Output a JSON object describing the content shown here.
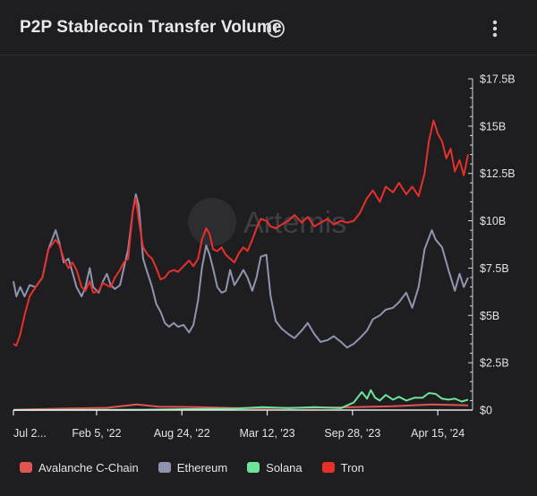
{
  "header": {
    "title": "P2P Stablecoin Transfer Volume",
    "info_icon": "info-icon",
    "menu_icon": "vertical-ellipsis-icon"
  },
  "watermark": "Artemis",
  "chart_data": {
    "type": "line",
    "title": "P2P Stablecoin Transfer Volume",
    "xlabel": "",
    "ylabel": "",
    "ylim": [
      0,
      17.5
    ],
    "y_unit": "B USD",
    "y_ticks": [
      "$0",
      "$2.5B",
      "$5B",
      "$7.5B",
      "$10B",
      "$12.5B",
      "$15B",
      "$17.5B"
    ],
    "y_tick_values": [
      0,
      2.5,
      5,
      7.5,
      10,
      12.5,
      15,
      17.5
    ],
    "x_tick_labels": [
      "Jul 2...",
      "Feb 5, '22",
      "Aug 24, '22",
      "Mar 12, '23",
      "Sep 28, '23",
      "Apr 15, '24"
    ],
    "x_tick_dates": [
      "2021-07-25",
      "2022-02-05",
      "2022-08-24",
      "2023-03-12",
      "2023-09-28",
      "2024-04-15"
    ],
    "x_range": [
      "2021-07-25",
      "2024-06-25"
    ],
    "grid": false,
    "legend_position": "bottom",
    "series": [
      {
        "name": "Avalanche C-Chain",
        "color": "#e0554f",
        "points": [
          [
            "2021-07-25",
            0.02
          ],
          [
            "2021-12-01",
            0.08
          ],
          [
            "2022-03-01",
            0.12
          ],
          [
            "2022-05-10",
            0.3
          ],
          [
            "2022-07-01",
            0.18
          ],
          [
            "2022-10-01",
            0.15
          ],
          [
            "2023-01-01",
            0.1
          ],
          [
            "2023-06-01",
            0.12
          ],
          [
            "2023-10-01",
            0.15
          ],
          [
            "2024-01-01",
            0.2
          ],
          [
            "2024-04-01",
            0.3
          ],
          [
            "2024-06-25",
            0.25
          ]
        ]
      },
      {
        "name": "Ethereum",
        "color": "#8f94b0",
        "points": [
          [
            "2021-07-25",
            6.8
          ],
          [
            "2021-08-01",
            6.0
          ],
          [
            "2021-08-10",
            6.5
          ],
          [
            "2021-08-20",
            6.0
          ],
          [
            "2021-09-01",
            6.6
          ],
          [
            "2021-09-15",
            6.5
          ],
          [
            "2021-10-01",
            7.0
          ],
          [
            "2021-10-15",
            8.5
          ],
          [
            "2021-11-01",
            9.5
          ],
          [
            "2021-11-10",
            8.8
          ],
          [
            "2021-11-20",
            7.8
          ],
          [
            "2021-12-01",
            8.0
          ],
          [
            "2021-12-10",
            7.3
          ],
          [
            "2021-12-20",
            6.5
          ],
          [
            "2022-01-01",
            6.0
          ],
          [
            "2022-01-10",
            6.5
          ],
          [
            "2022-01-20",
            7.5
          ],
          [
            "2022-01-28",
            6.5
          ],
          [
            "2022-02-10",
            6.2
          ],
          [
            "2022-02-20",
            6.8
          ],
          [
            "2022-03-01",
            7.2
          ],
          [
            "2022-03-10",
            6.6
          ],
          [
            "2022-03-20",
            6.4
          ],
          [
            "2022-04-01",
            6.6
          ],
          [
            "2022-04-10",
            7.5
          ],
          [
            "2022-04-20",
            8.5
          ],
          [
            "2022-05-01",
            10.5
          ],
          [
            "2022-05-08",
            11.4
          ],
          [
            "2022-05-15",
            10.8
          ],
          [
            "2022-05-25",
            8.0
          ],
          [
            "2022-06-05",
            7.2
          ],
          [
            "2022-06-15",
            6.5
          ],
          [
            "2022-06-25",
            5.6
          ],
          [
            "2022-07-05",
            5.2
          ],
          [
            "2022-07-15",
            4.6
          ],
          [
            "2022-07-25",
            4.4
          ],
          [
            "2022-08-05",
            4.6
          ],
          [
            "2022-08-15",
            4.4
          ],
          [
            "2022-08-28",
            4.5
          ],
          [
            "2022-09-10",
            4.1
          ],
          [
            "2022-09-20",
            4.5
          ],
          [
            "2022-10-01",
            5.8
          ],
          [
            "2022-10-10",
            7.5
          ],
          [
            "2022-10-20",
            8.7
          ],
          [
            "2022-10-28",
            8.2
          ],
          [
            "2022-11-05",
            7.5
          ],
          [
            "2022-11-15",
            6.5
          ],
          [
            "2022-11-25",
            6.2
          ],
          [
            "2022-12-05",
            6.3
          ],
          [
            "2022-12-15",
            7.4
          ],
          [
            "2022-12-25",
            6.6
          ],
          [
            "2023-01-05",
            7.0
          ],
          [
            "2023-01-15",
            7.4
          ],
          [
            "2023-01-25",
            7.0
          ],
          [
            "2023-02-05",
            6.3
          ],
          [
            "2023-02-15",
            7.0
          ],
          [
            "2023-02-25",
            8.1
          ],
          [
            "2023-03-10",
            8.2
          ],
          [
            "2023-03-20",
            6.0
          ],
          [
            "2023-04-01",
            4.7
          ],
          [
            "2023-04-15",
            4.3
          ],
          [
            "2023-05-01",
            4.0
          ],
          [
            "2023-05-15",
            3.8
          ],
          [
            "2023-06-01",
            4.2
          ],
          [
            "2023-06-15",
            4.6
          ],
          [
            "2023-07-01",
            4.0
          ],
          [
            "2023-07-15",
            3.6
          ],
          [
            "2023-08-01",
            3.7
          ],
          [
            "2023-08-15",
            3.9
          ],
          [
            "2023-09-01",
            3.6
          ],
          [
            "2023-09-15",
            3.3
          ],
          [
            "2023-10-01",
            3.5
          ],
          [
            "2023-10-15",
            3.8
          ],
          [
            "2023-11-01",
            4.2
          ],
          [
            "2023-11-15",
            4.8
          ],
          [
            "2023-12-01",
            5.0
          ],
          [
            "2023-12-15",
            5.3
          ],
          [
            "2024-01-01",
            5.4
          ],
          [
            "2024-01-15",
            5.7
          ],
          [
            "2024-02-01",
            6.2
          ],
          [
            "2024-02-15",
            5.4
          ],
          [
            "2024-03-01",
            6.5
          ],
          [
            "2024-03-15",
            8.5
          ],
          [
            "2024-04-01",
            9.5
          ],
          [
            "2024-04-10",
            9.0
          ],
          [
            "2024-04-25",
            8.6
          ],
          [
            "2024-05-10",
            7.4
          ],
          [
            "2024-05-25",
            6.3
          ],
          [
            "2024-06-05",
            7.2
          ],
          [
            "2024-06-15",
            6.5
          ],
          [
            "2024-06-25",
            7.0
          ]
        ]
      },
      {
        "name": "Solana",
        "color": "#6fe39a",
        "points": [
          [
            "2021-07-25",
            0
          ],
          [
            "2022-06-01",
            0.02
          ],
          [
            "2023-01-01",
            0.08
          ],
          [
            "2023-03-01",
            0.15
          ],
          [
            "2023-05-01",
            0.1
          ],
          [
            "2023-07-01",
            0.15
          ],
          [
            "2023-09-01",
            0.1
          ],
          [
            "2023-10-01",
            0.4
          ],
          [
            "2023-10-20",
            0.95
          ],
          [
            "2023-11-01",
            0.6
          ],
          [
            "2023-11-10",
            1.05
          ],
          [
            "2023-11-20",
            0.65
          ],
          [
            "2023-12-01",
            0.5
          ],
          [
            "2023-12-15",
            0.8
          ],
          [
            "2024-01-01",
            0.55
          ],
          [
            "2024-01-15",
            0.7
          ],
          [
            "2024-02-01",
            0.5
          ],
          [
            "2024-02-20",
            0.65
          ],
          [
            "2024-03-10",
            0.65
          ],
          [
            "2024-03-25",
            0.9
          ],
          [
            "2024-04-10",
            0.85
          ],
          [
            "2024-04-25",
            0.6
          ],
          [
            "2024-05-10",
            0.55
          ],
          [
            "2024-05-25",
            0.6
          ],
          [
            "2024-06-10",
            0.45
          ],
          [
            "2024-06-25",
            0.55
          ]
        ]
      },
      {
        "name": "Tron",
        "color": "#e8302b",
        "points": [
          [
            "2021-07-25",
            3.5
          ],
          [
            "2021-08-01",
            3.4
          ],
          [
            "2021-08-10",
            4.0
          ],
          [
            "2021-08-20",
            5.0
          ],
          [
            "2021-09-01",
            6.0
          ],
          [
            "2021-09-15",
            6.5
          ],
          [
            "2021-10-01",
            7.0
          ],
          [
            "2021-10-15",
            8.5
          ],
          [
            "2021-11-01",
            9.0
          ],
          [
            "2021-11-10",
            8.7
          ],
          [
            "2021-11-20",
            8.0
          ],
          [
            "2021-12-01",
            7.5
          ],
          [
            "2021-12-10",
            7.8
          ],
          [
            "2021-12-20",
            7.4
          ],
          [
            "2022-01-01",
            6.5
          ],
          [
            "2022-01-10",
            6.3
          ],
          [
            "2022-01-20",
            6.8
          ],
          [
            "2022-01-28",
            6.2
          ],
          [
            "2022-02-10",
            6.3
          ],
          [
            "2022-02-20",
            6.7
          ],
          [
            "2022-03-01",
            6.6
          ],
          [
            "2022-03-10",
            6.5
          ],
          [
            "2022-03-20",
            7.0
          ],
          [
            "2022-04-01",
            7.4
          ],
          [
            "2022-04-10",
            7.8
          ],
          [
            "2022-04-20",
            8.0
          ],
          [
            "2022-05-01",
            10.5
          ],
          [
            "2022-05-08",
            11.2
          ],
          [
            "2022-05-15",
            10.0
          ],
          [
            "2022-05-25",
            8.6
          ],
          [
            "2022-06-05",
            8.2
          ],
          [
            "2022-06-15",
            8.0
          ],
          [
            "2022-06-25",
            7.5
          ],
          [
            "2022-07-05",
            6.9
          ],
          [
            "2022-07-15",
            7.0
          ],
          [
            "2022-07-25",
            7.3
          ],
          [
            "2022-08-05",
            7.4
          ],
          [
            "2022-08-15",
            7.3
          ],
          [
            "2022-08-28",
            7.6
          ],
          [
            "2022-09-10",
            7.9
          ],
          [
            "2022-09-20",
            7.6
          ],
          [
            "2022-10-01",
            8.0
          ],
          [
            "2022-10-10",
            9.0
          ],
          [
            "2022-10-20",
            9.6
          ],
          [
            "2022-10-28",
            9.3
          ],
          [
            "2022-11-05",
            8.5
          ],
          [
            "2022-11-15",
            8.4
          ],
          [
            "2022-11-25",
            8.6
          ],
          [
            "2022-12-05",
            8.2
          ],
          [
            "2022-12-15",
            8.0
          ],
          [
            "2022-12-25",
            7.8
          ],
          [
            "2023-01-05",
            8.3
          ],
          [
            "2023-01-15",
            8.6
          ],
          [
            "2023-01-25",
            8.4
          ],
          [
            "2023-02-05",
            9.0
          ],
          [
            "2023-02-15",
            9.6
          ],
          [
            "2023-02-25",
            10.1
          ],
          [
            "2023-03-10",
            10.0
          ],
          [
            "2023-03-20",
            9.7
          ],
          [
            "2023-04-01",
            9.6
          ],
          [
            "2023-04-15",
            9.8
          ],
          [
            "2023-05-01",
            10.0
          ],
          [
            "2023-05-15",
            10.3
          ],
          [
            "2023-06-01",
            9.9
          ],
          [
            "2023-06-15",
            10.2
          ],
          [
            "2023-07-01",
            9.7
          ],
          [
            "2023-07-15",
            9.9
          ],
          [
            "2023-08-01",
            10.1
          ],
          [
            "2023-08-15",
            9.8
          ],
          [
            "2023-09-01",
            10.0
          ],
          [
            "2023-09-15",
            9.9
          ],
          [
            "2023-10-01",
            10.0
          ],
          [
            "2023-10-15",
            10.4
          ],
          [
            "2023-11-01",
            11.2
          ],
          [
            "2023-11-15",
            11.6
          ],
          [
            "2023-12-01",
            11.0
          ],
          [
            "2023-12-15",
            11.8
          ],
          [
            "2024-01-01",
            11.5
          ],
          [
            "2024-01-15",
            12.0
          ],
          [
            "2024-02-01",
            11.4
          ],
          [
            "2024-02-15",
            11.8
          ],
          [
            "2024-03-01",
            11.3
          ],
          [
            "2024-03-15",
            12.5
          ],
          [
            "2024-03-25",
            14.2
          ],
          [
            "2024-04-05",
            15.3
          ],
          [
            "2024-04-15",
            14.6
          ],
          [
            "2024-04-25",
            14.2
          ],
          [
            "2024-05-05",
            13.3
          ],
          [
            "2024-05-15",
            13.8
          ],
          [
            "2024-05-25",
            12.6
          ],
          [
            "2024-06-05",
            13.2
          ],
          [
            "2024-06-15",
            12.4
          ],
          [
            "2024-06-25",
            13.5
          ]
        ]
      }
    ]
  }
}
